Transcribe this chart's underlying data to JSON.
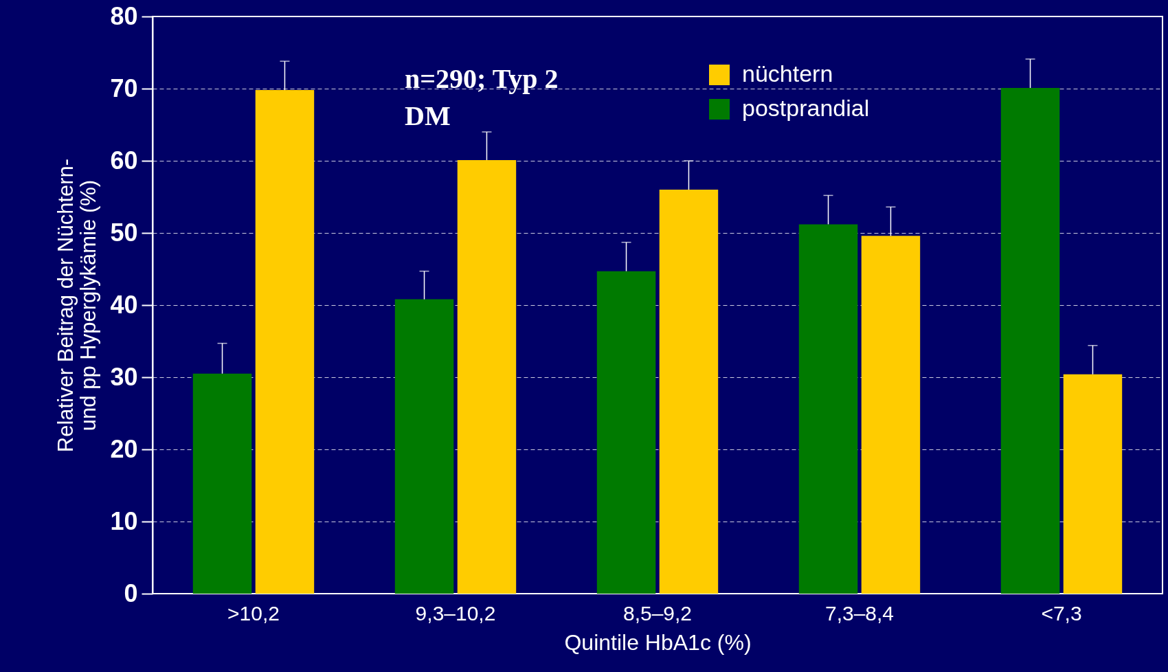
{
  "chart_data": {
    "type": "bar",
    "xlabel": "Quintile HbA1c (%)",
    "ylabel": "Relativer Beitrag der Nüchtern-\nund pp Hyperglykämie (%)",
    "categories": [
      ">10,2",
      "9,3–10,2",
      "8,5–9,2",
      "7,3–8,4",
      "<7,3"
    ],
    "series": [
      {
        "name": "postprandial",
        "color": "#007a00",
        "values": [
          30.5,
          40.8,
          44.7,
          51.2,
          70.1
        ],
        "errors": [
          [
            30.5,
            34.7
          ],
          [
            40.8,
            44.7
          ],
          [
            44.7,
            48.7
          ],
          [
            51.2,
            55.2
          ],
          [
            70.1,
            74.1
          ]
        ]
      },
      {
        "name": "nüchtern",
        "color": "#ffcc00",
        "values": [
          69.8,
          60.1,
          56.0,
          49.6,
          30.4
        ],
        "errors": [
          [
            69.8,
            73.8
          ],
          [
            60.1,
            64.0
          ],
          [
            56.0,
            60.0
          ],
          [
            49.6,
            53.6
          ],
          [
            30.4,
            34.4
          ]
        ]
      }
    ],
    "ylim": [
      0,
      80
    ],
    "yticks": [
      0,
      10,
      20,
      30,
      40,
      50,
      60,
      70,
      80
    ],
    "grid": "y",
    "legend": "top right",
    "annotations": [
      "n=290; Typ 2\nDM"
    ]
  }
}
